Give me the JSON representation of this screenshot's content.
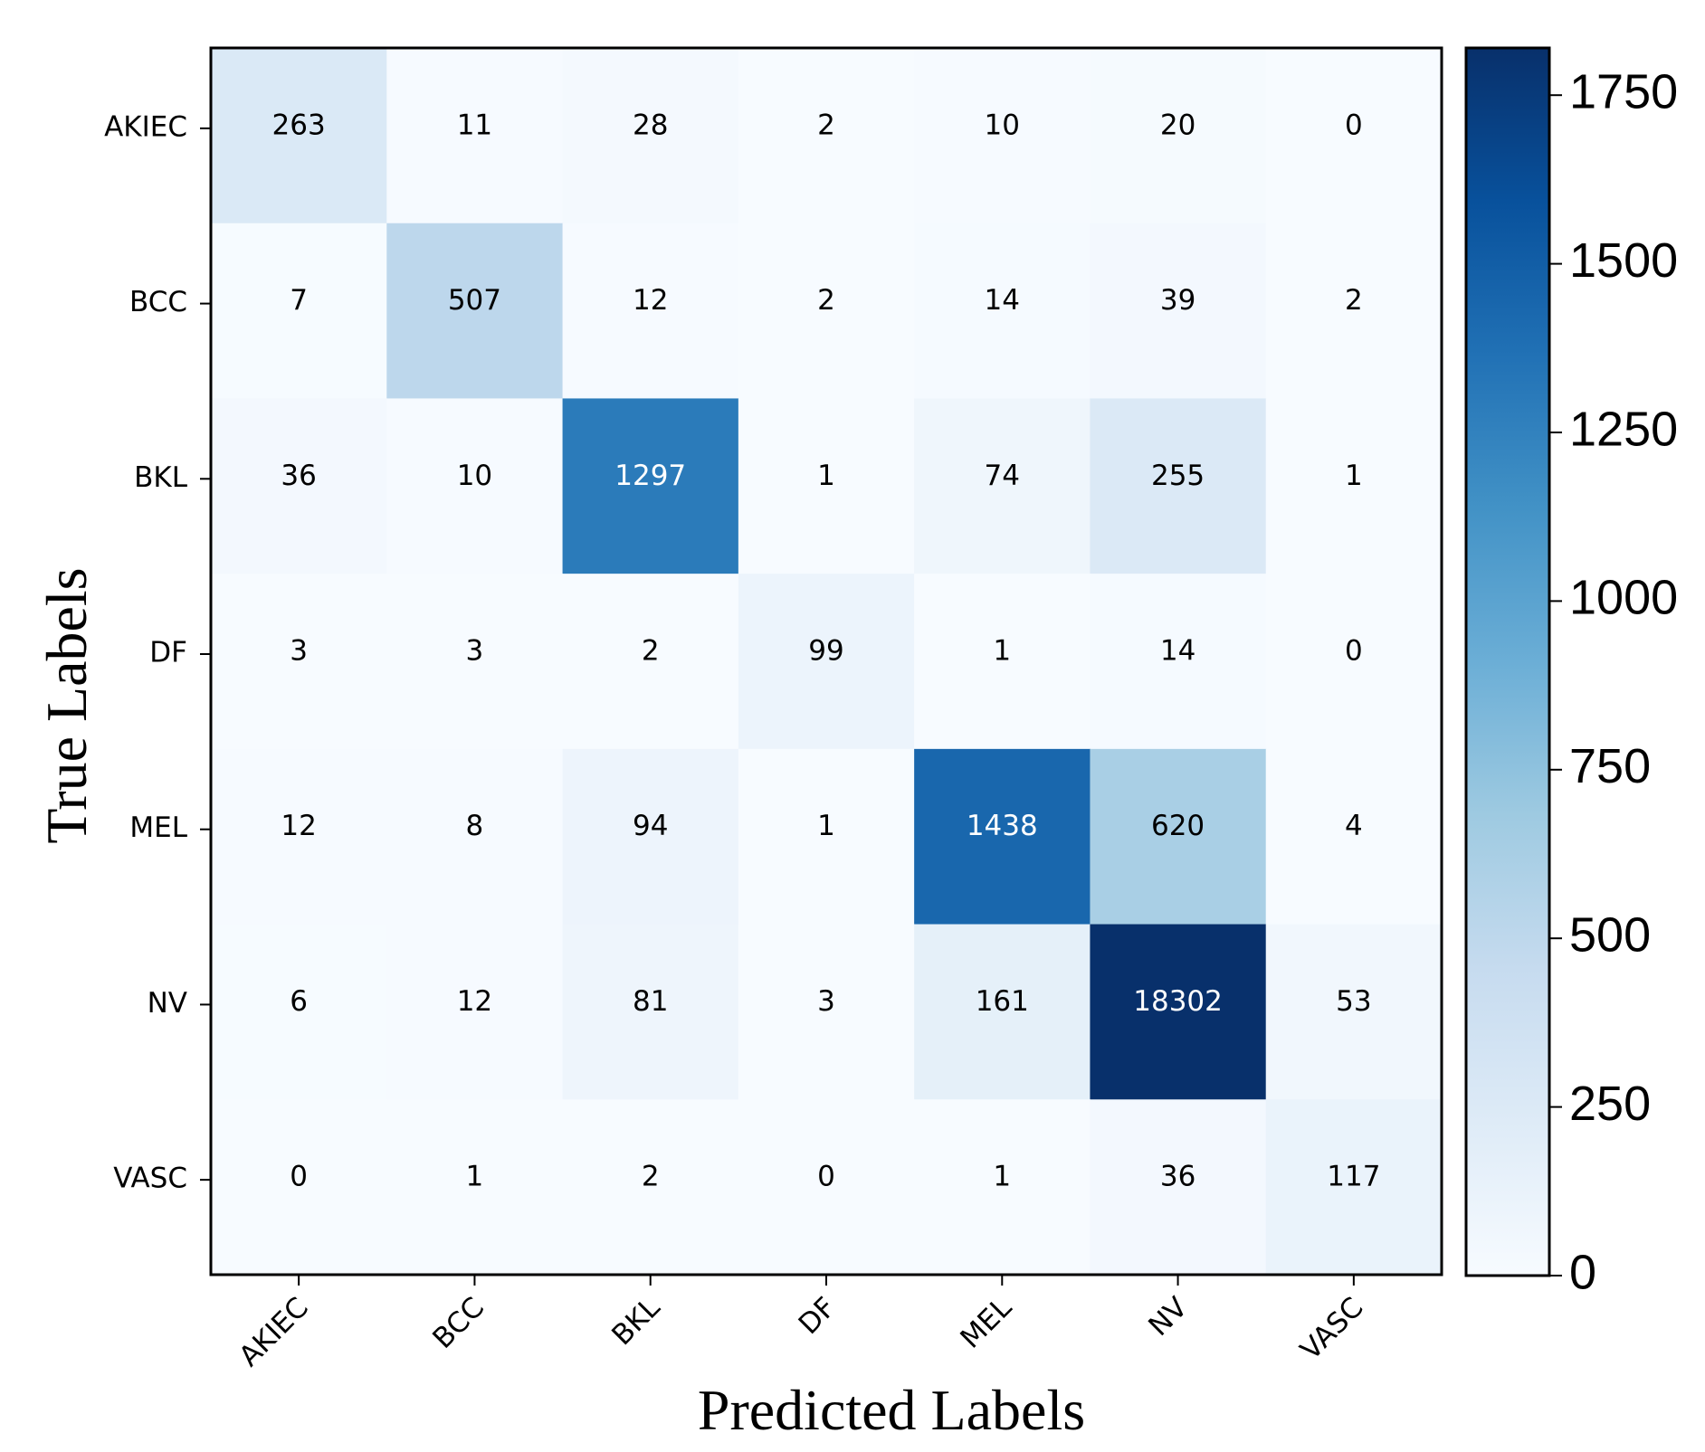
{
  "chart_data": {
    "type": "heatmap",
    "title": "",
    "xlabel": "Predicted Labels",
    "ylabel": "True Labels",
    "x_categories": [
      "AKIEC",
      "BCC",
      "BKL",
      "DF",
      "MEL",
      "NV",
      "VASC"
    ],
    "y_categories": [
      "AKIEC",
      "BCC",
      "BKL",
      "DF",
      "MEL",
      "NV",
      "VASC"
    ],
    "matrix": [
      [
        263,
        11,
        28,
        2,
        10,
        20,
        0
      ],
      [
        7,
        507,
        12,
        2,
        14,
        39,
        2
      ],
      [
        36,
        10,
        1297,
        1,
        74,
        255,
        1
      ],
      [
        3,
        3,
        2,
        99,
        1,
        14,
        0
      ],
      [
        12,
        8,
        94,
        1,
        1438,
        620,
        4
      ],
      [
        6,
        12,
        81,
        3,
        161,
        18302,
        53
      ],
      [
        0,
        1,
        2,
        0,
        1,
        36,
        117
      ]
    ],
    "colorbar": {
      "colormap": "Blues",
      "range": [
        0,
        1820
      ],
      "ticks": [
        0,
        250,
        500,
        750,
        1000,
        1250,
        1500,
        1750
      ],
      "tick_labels": [
        "0",
        "250",
        "500",
        "750",
        "1000",
        "1250",
        "1500",
        "1750"
      ]
    },
    "colors": {
      "low": "#f7fbff",
      "high": "#08306b",
      "text_dark": "#000000",
      "text_light": "#ffffff"
    }
  }
}
